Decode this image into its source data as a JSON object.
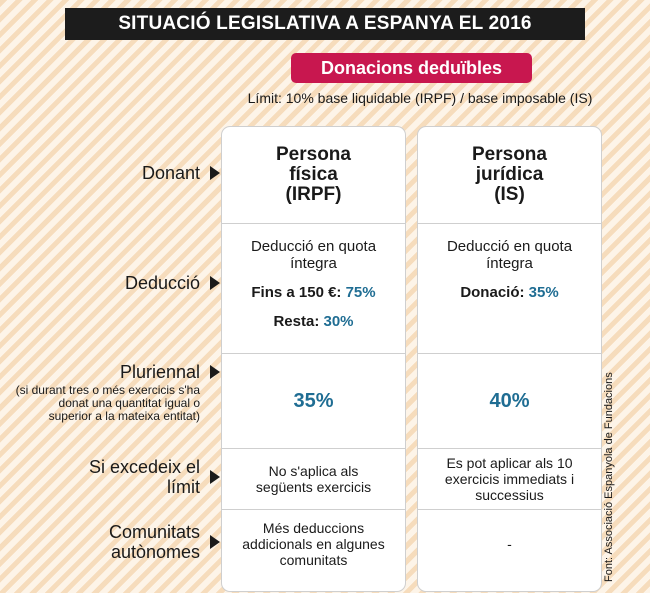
{
  "title": "SITUACIÓ LEGISLATIVA A ESPANYA EL 2016",
  "subtitle": "Donacions deduïbles",
  "limit_note": "Límit: 10% base liquidable (IRPF) / base imposable (IS)",
  "rows": {
    "donant": "Donant",
    "deduccio": "Deducció",
    "pluriennal": "Pluriennal",
    "pluriennal_note": "(si durant tres o més exercicis s'ha donat una quantitat igual o superior a la mateixa entitat)",
    "excedeix": "Si excedeix el límit",
    "comunitats": "Comunitats autònomes"
  },
  "columns": [
    {
      "head": [
        "Persona",
        "física",
        "(IRPF)"
      ],
      "deduccio_text": "Deducció en quota íntegra",
      "deduccio_lines": [
        {
          "label": "Fins a 150 €:",
          "value": "75%"
        },
        {
          "label": "Resta:",
          "value": "30%"
        }
      ],
      "pluriennal": "35%",
      "excedeix": "No s'aplica als següents exercicis",
      "comunitats": "Més deduccions addicionals en algunes comunitats"
    },
    {
      "head": [
        "Persona",
        "jurídica",
        "(IS)"
      ],
      "deduccio_text": "Deducció en quota íntegra",
      "deduccio_lines": [
        {
          "label": "Donació:",
          "value": "35%"
        }
      ],
      "pluriennal": "40%",
      "excedeix": "Es pot aplicar als 10 exercicis immediats i successius",
      "comunitats": "-"
    }
  ],
  "source": "Font: Associació Espanyola de Fundacions",
  "colors": {
    "title_bg": "#1c1c1c",
    "badge": "#c8174f",
    "accent": "#1f6d93"
  }
}
